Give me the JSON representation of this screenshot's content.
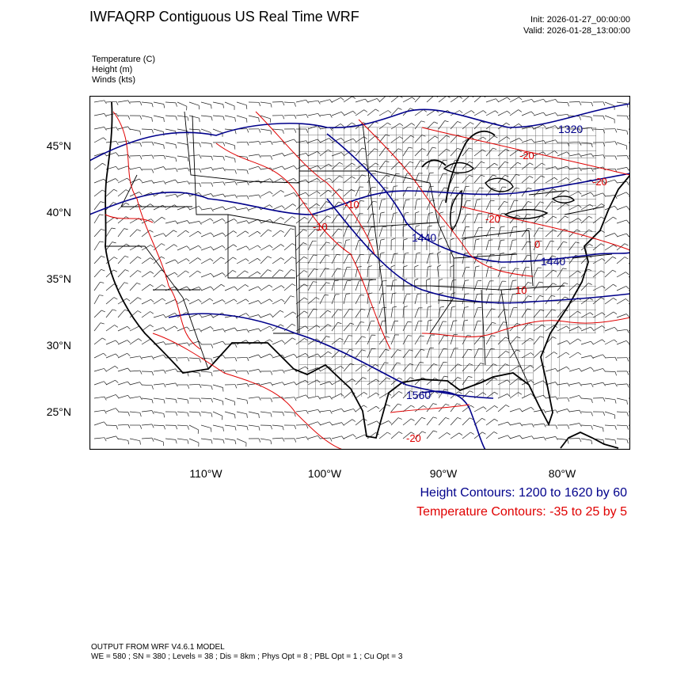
{
  "header": {
    "title": "IWFAQRP Contiguous US Real Time WRF",
    "init": "Init: 2026-01-27_00:00:00",
    "valid": "Valid: 2026-01-28_13:00:00"
  },
  "fields": [
    "Temperature   (C)",
    "Height   (m)",
    "Winds   (kts)"
  ],
  "map": {
    "lat_labels": [
      "45°N",
      "40°N",
      "35°N",
      "30°N",
      "25°N"
    ],
    "lon_labels": [
      "110°W",
      "100°W",
      "90°W",
      "80°W"
    ],
    "contour_labels": {
      "height": [
        "1320",
        "1440",
        "1440",
        "1560"
      ],
      "temperature": [
        "-20",
        "-10",
        "-10",
        "-20",
        "0",
        "-20",
        "10",
        "-20"
      ]
    },
    "colors": {
      "height": "#00008b",
      "temperature": "#e00000",
      "boundaries": "#000000"
    }
  },
  "notes": {
    "height": "Height Contours: 1200 to 1620 by 60",
    "temperature": "Temperature Contours: -35 to 25 by 5"
  },
  "footer": {
    "line1": "OUTPUT FROM WRF V4.6.1 MODEL",
    "line2": "WE = 580 ; SN = 380 ; Levels = 38 ; Dis = 8km ; Phys Opt = 8 ; PBL Opt = 1 ; Cu Opt = 3"
  }
}
